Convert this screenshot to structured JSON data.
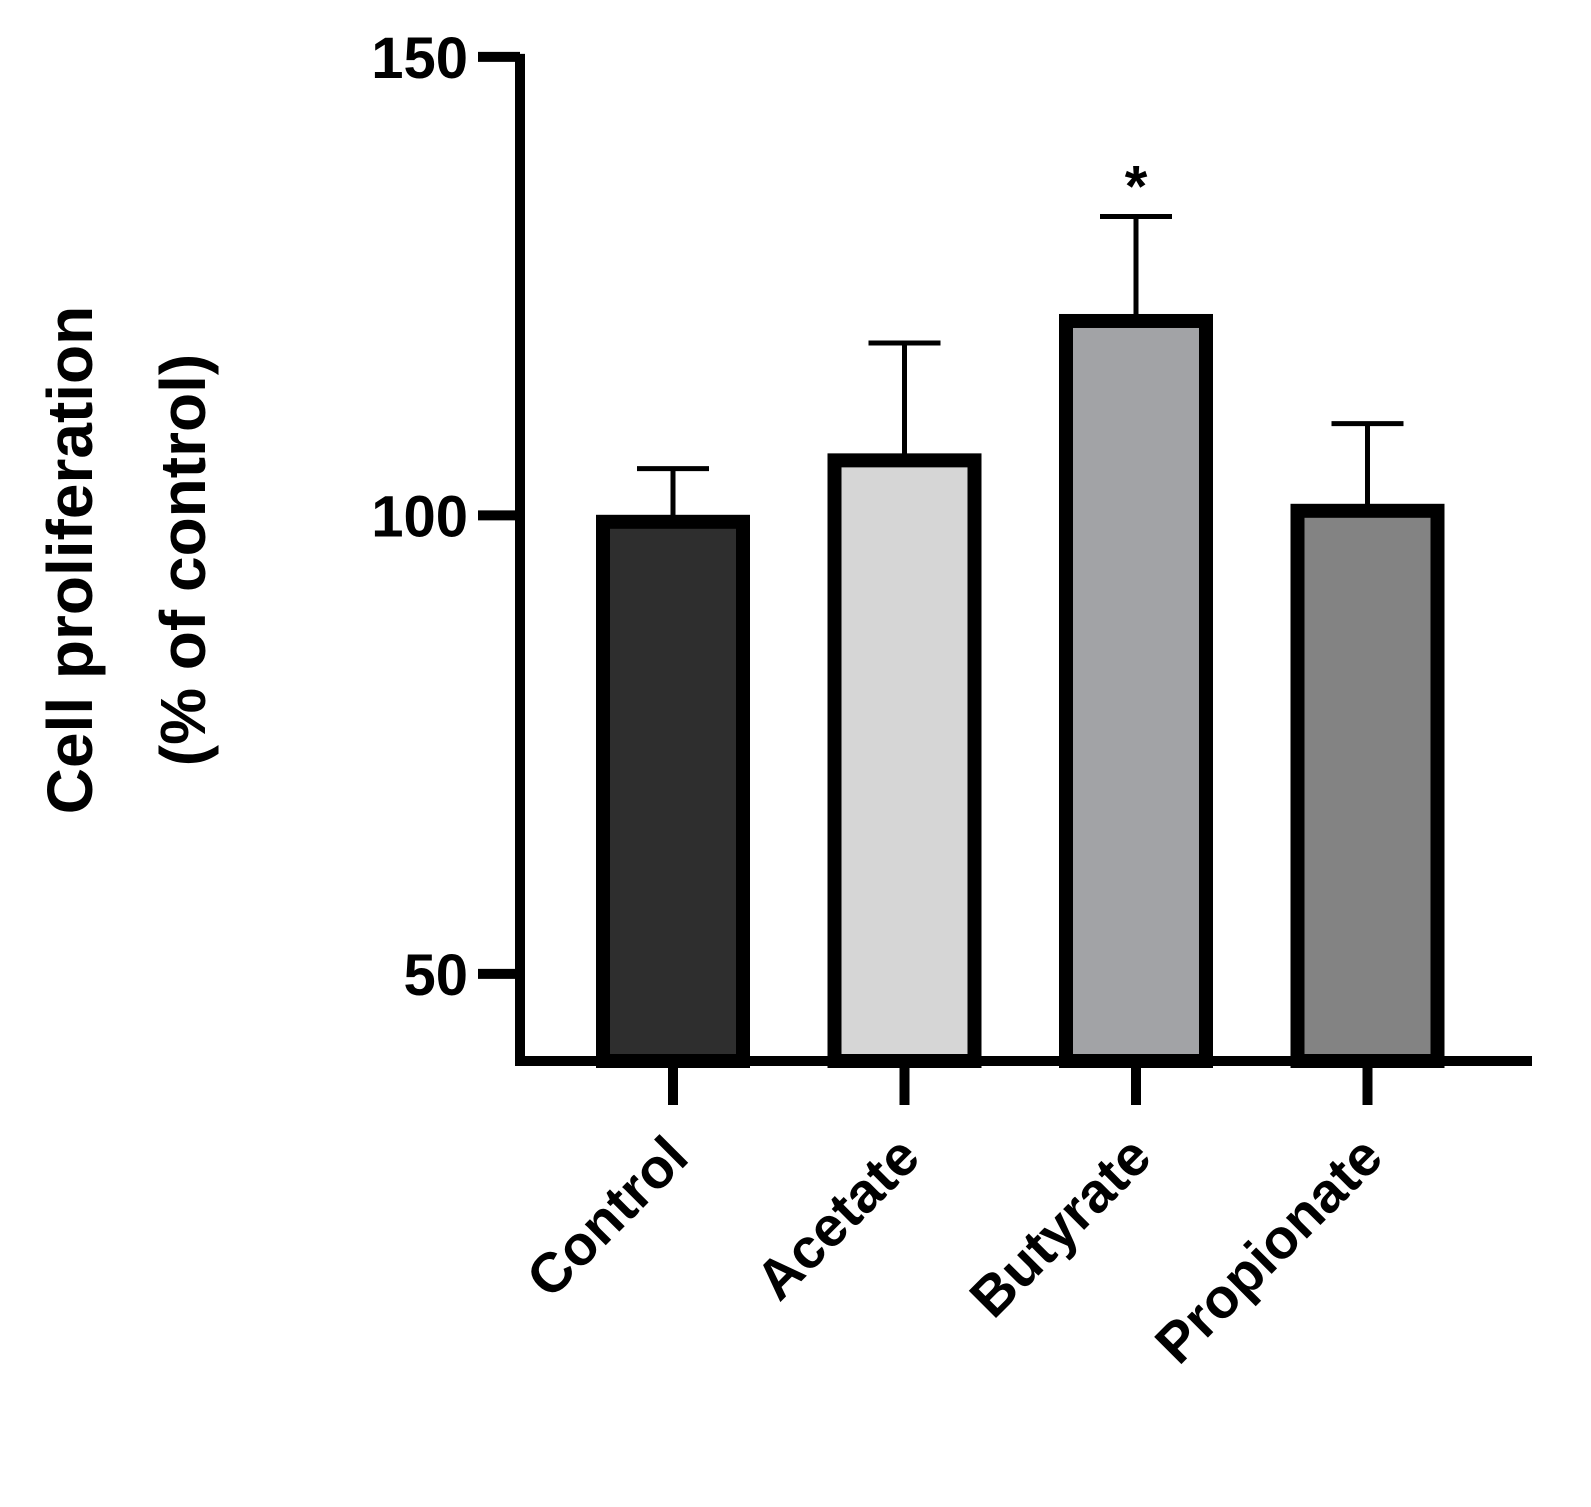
{
  "chart_data": {
    "type": "bar",
    "categories": [
      "Control",
      "Acetate",
      "Butyrate",
      "Propionate"
    ],
    "values": [
      99.3,
      106.0,
      121.2,
      100.5
    ],
    "error_upper": [
      105.1,
      118.8,
      132.6,
      110.0
    ],
    "colors": [
      "#2e2e2e",
      "#d6d6d6",
      "#a2a3a6",
      "#838383"
    ],
    "ylabel_lines": [
      "Cell proliferation",
      "(% of control)"
    ],
    "xlabel": "",
    "ylim": [
      40.5,
      150
    ],
    "yticks": [
      50,
      100,
      150
    ],
    "ytick_labels": [
      "50",
      "100",
      "150"
    ],
    "annotations": [
      {
        "category": "Butyrate",
        "text": "*"
      }
    ],
    "grid": false,
    "legend": "none"
  }
}
